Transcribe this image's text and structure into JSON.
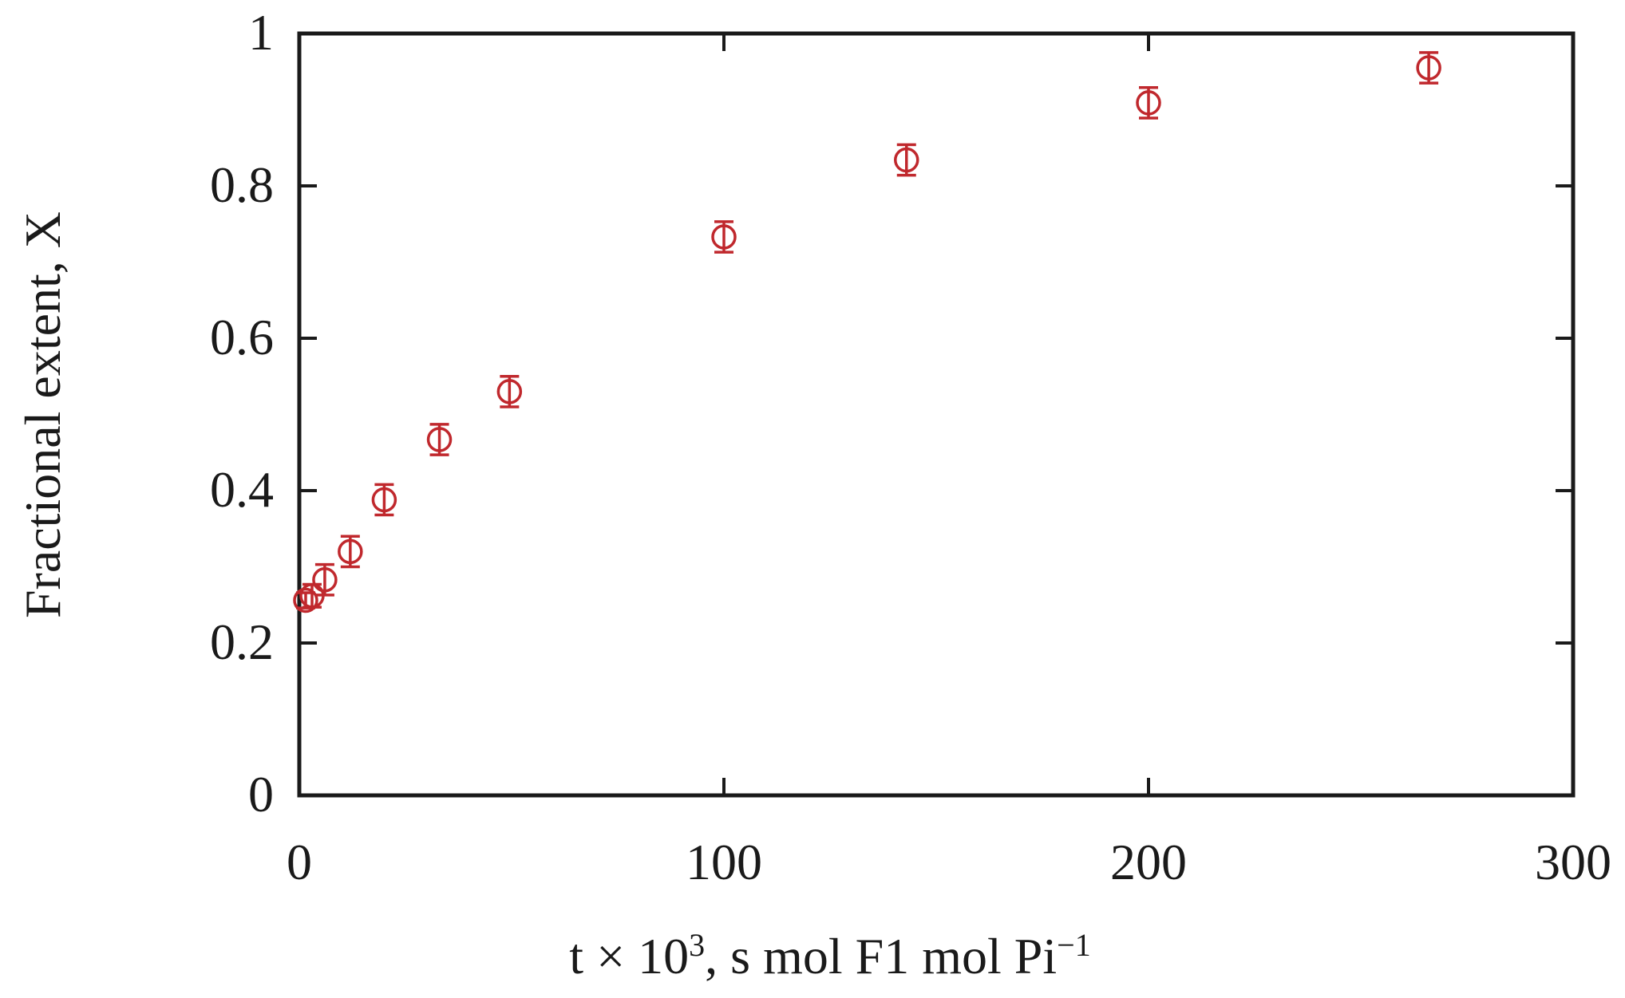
{
  "chart_data": {
    "type": "scatter",
    "title": "",
    "xlabel": {
      "pre": "t × 10",
      "sup1": "3",
      "mid": ", s mol F1 mol Pi",
      "sup2": "−1"
    },
    "ylabel": "Fractional extent, X",
    "xlim": [
      0,
      300
    ],
    "ylim": [
      0,
      1
    ],
    "xticks": [
      0,
      100,
      200,
      300
    ],
    "xtick_labels": [
      "0",
      "100",
      "200",
      "300"
    ],
    "yticks": [
      0,
      0.2,
      0.4,
      0.6,
      0.8,
      1
    ],
    "ytick_labels": [
      "0",
      "0.2",
      "0.4",
      "0.6",
      "0.8",
      "1"
    ],
    "grid": false,
    "marker": "open-circle-with-error-bars",
    "color": "#c0282d",
    "series": [
      {
        "points": [
          {
            "x": 1.5,
            "y": 0.256,
            "err": 0.01
          },
          {
            "x": 3,
            "y": 0.262,
            "err": 0.015
          },
          {
            "x": 6,
            "y": 0.283,
            "err": 0.02
          },
          {
            "x": 12,
            "y": 0.32,
            "err": 0.02
          },
          {
            "x": 20,
            "y": 0.388,
            "err": 0.02
          },
          {
            "x": 33,
            "y": 0.467,
            "err": 0.02
          },
          {
            "x": 49.5,
            "y": 0.53,
            "err": 0.02
          },
          {
            "x": 100,
            "y": 0.733,
            "err": 0.02
          },
          {
            "x": 143,
            "y": 0.834,
            "err": 0.02
          },
          {
            "x": 200,
            "y": 0.909,
            "err": 0.02
          },
          {
            "x": 266,
            "y": 0.955,
            "err": 0.02
          }
        ]
      }
    ]
  }
}
